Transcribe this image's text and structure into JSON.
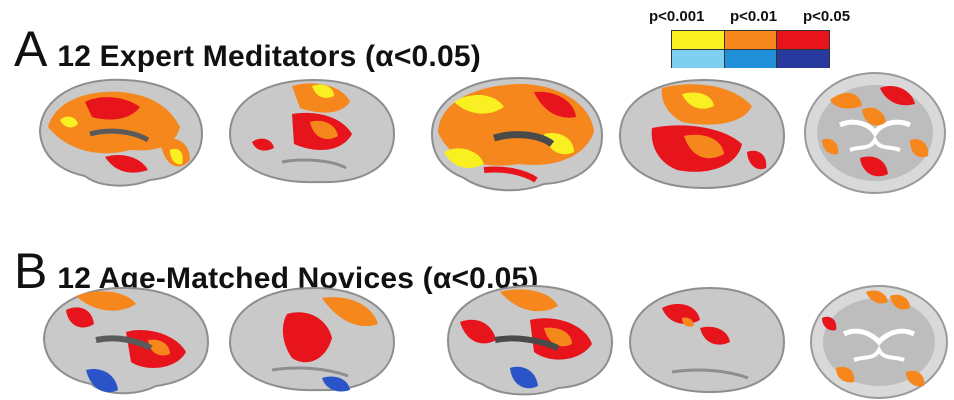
{
  "figure": {
    "panel_a": {
      "letter": "A",
      "title": "12 Expert Meditators (α<0.05)"
    },
    "panel_b": {
      "letter": "B",
      "title": "12 Age-Matched Novices (α<0.05)"
    }
  },
  "legend": {
    "labels": [
      "p<0.001",
      "p<0.01",
      "p<0.05"
    ],
    "positive_colors": [
      "#f8f020",
      "#f5871c",
      "#e8141c"
    ],
    "negative_colors": [
      "#7fd0f0",
      "#1f8fd8",
      "#283a9e"
    ]
  },
  "colors": {
    "cortex": "#c9c9c9",
    "cortex_dark": "#8e8e8e",
    "strong": "#f8f020",
    "mid": "#f5871c",
    "weak": "#e8141c",
    "neg": "#2a55c8"
  }
}
